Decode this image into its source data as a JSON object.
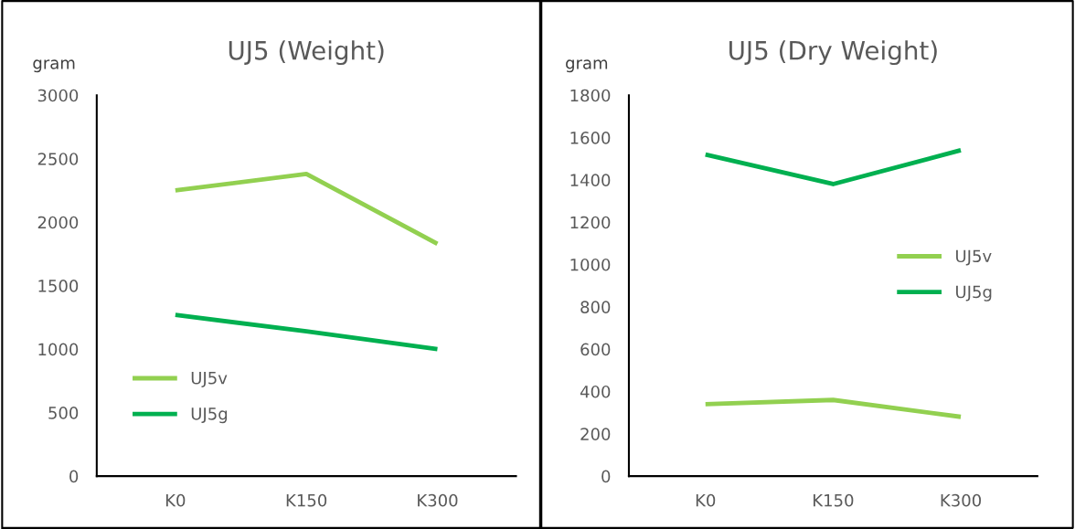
{
  "chart_data": [
    {
      "type": "line",
      "title": "UJ5 (Weight)",
      "ylabel": "gram",
      "categories": [
        "K0",
        "K150",
        "K300"
      ],
      "series": [
        {
          "name": "UJ5v",
          "color": "#92d050",
          "values": [
            2250,
            2380,
            1830
          ]
        },
        {
          "name": "UJ5g",
          "color": "#00b050",
          "values": [
            1270,
            1140,
            1000
          ]
        }
      ],
      "ylim": [
        0,
        3000
      ],
      "yticks": [
        0,
        500,
        1000,
        1500,
        2000,
        2500,
        3000
      ],
      "grid": false,
      "legend": "bottom left",
      "marker": "none",
      "line_style": "solid"
    },
    {
      "type": "line",
      "title": "UJ5 (Dry Weight)",
      "ylabel": "gram",
      "categories": [
        "K0",
        "K150",
        "K300"
      ],
      "series": [
        {
          "name": "UJ5v",
          "color": "#92d050",
          "values": [
            340,
            360,
            280
          ]
        },
        {
          "name": "UJ5g",
          "color": "#00b050",
          "values": [
            1520,
            1380,
            1540
          ]
        }
      ],
      "ylim": [
        0,
        1800
      ],
      "yticks": [
        0,
        200,
        400,
        600,
        800,
        1000,
        1200,
        1400,
        1600,
        1800
      ],
      "grid": false,
      "legend": "center right",
      "marker": "none",
      "line_style": "solid"
    }
  ]
}
